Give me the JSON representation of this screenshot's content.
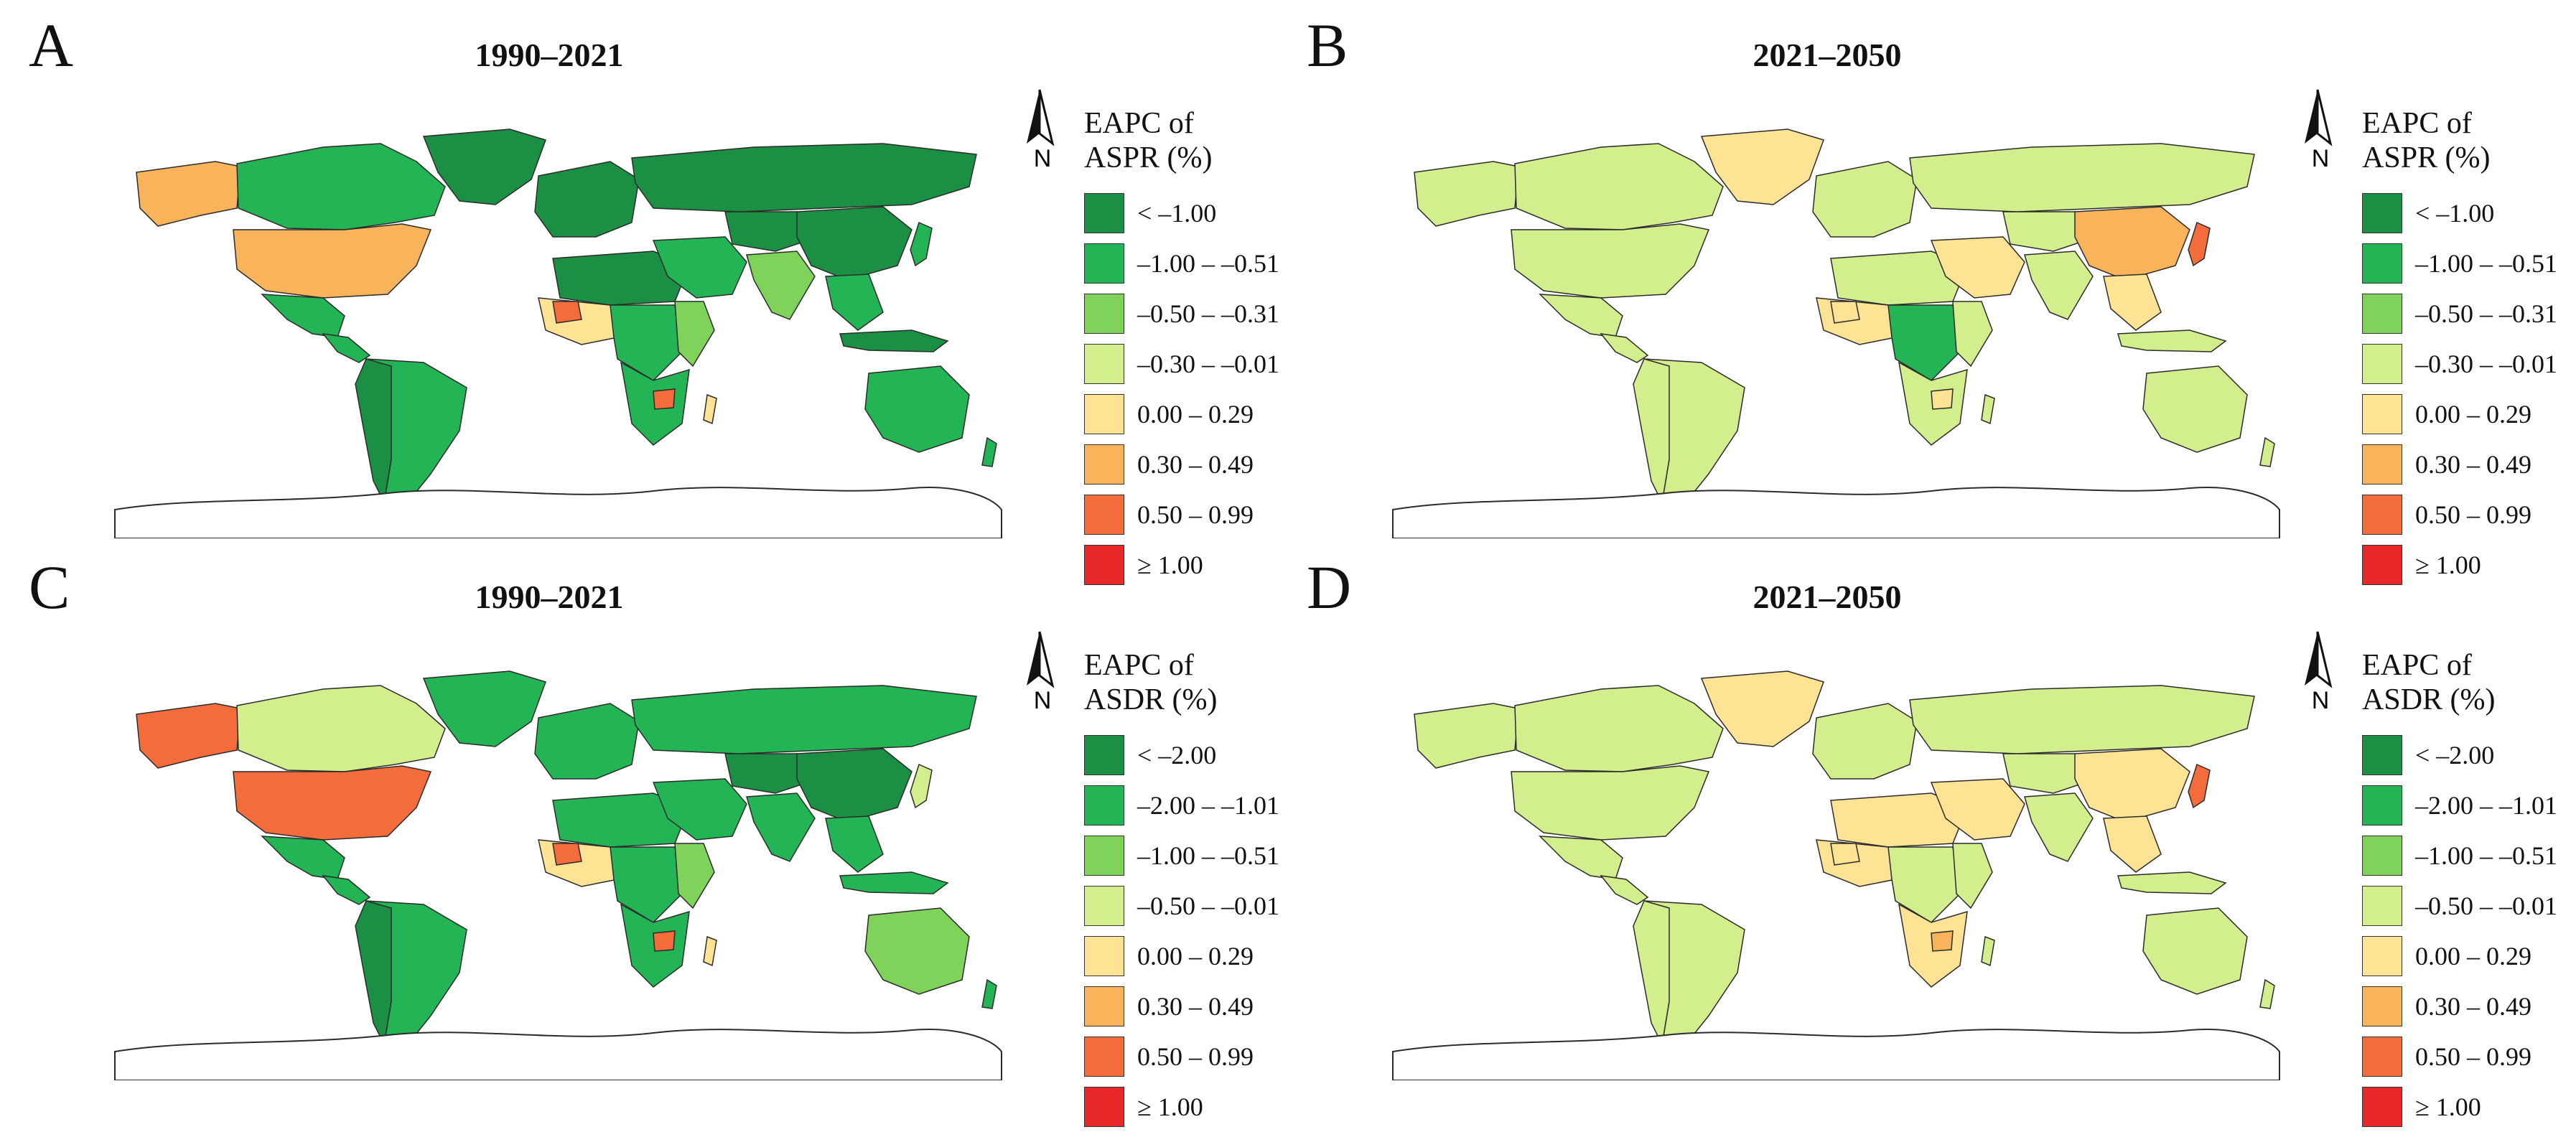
{
  "colors": {
    "dark_green": "#1b8f44",
    "green": "#22b455",
    "light_green": "#7fd35a",
    "pale_green": "#d3ee8c",
    "pale_yellow": "#ffe395",
    "orange_light": "#f9b35a",
    "orange": "#f46c3c",
    "red": "#e82828",
    "coast": "#2b2b2b",
    "antarctica": "#ffffff"
  },
  "panels": [
    {
      "letter": "A",
      "title": "1990–2021",
      "legend_title": "EAPC of",
      "legend_title2": "ASPR (%)",
      "legend": [
        "< –1.00",
        "–1.00 – –0.51",
        "–0.50 – –0.31",
        "–0.30 – –0.01",
        "0.00 – 0.29",
        "0.30 – 0.49",
        "0.50 – 0.99",
        "≥ 1.00"
      ],
      "north_label": "N",
      "fills": {
        "alaska": "orange_light",
        "canada": "green",
        "usa": "orange_light",
        "greenland": "dark_green",
        "mexico": "green",
        "central_america": "green",
        "south_america": "green",
        "south_america_west": "dark_green",
        "europe": "dark_green",
        "russia": "dark_green",
        "north_africa": "dark_green",
        "west_africa": "pale_yellow",
        "west_africa_spot": "orange",
        "central_africa": "green",
        "east_africa": "light_green",
        "southern_africa": "green",
        "southern_africa_spot": "orange",
        "middle_east": "green",
        "central_asia": "dark_green",
        "india": "light_green",
        "china": "dark_green",
        "southeast_asia": "green",
        "japan": "green",
        "indonesia": "dark_green",
        "australia": "green",
        "new_zealand": "green",
        "madagascar": "pale_yellow"
      }
    },
    {
      "letter": "B",
      "title": "2021–2050",
      "legend_title": "EAPC of",
      "legend_title2": "ASPR (%)",
      "legend": [
        "< –1.00",
        "–1.00 – –0.51",
        "–0.50 – –0.31",
        "–0.30 – –0.01",
        "0.00 – 0.29",
        "0.30 – 0.49",
        "0.50 – 0.99",
        "≥ 1.00"
      ],
      "north_label": "N",
      "fills": {
        "alaska": "pale_green",
        "canada": "pale_green",
        "usa": "pale_green",
        "greenland": "pale_yellow",
        "mexico": "pale_green",
        "central_america": "pale_green",
        "south_america": "pale_green",
        "south_america_west": "pale_green",
        "europe": "pale_green",
        "russia": "pale_green",
        "north_africa": "pale_green",
        "west_africa": "pale_yellow",
        "west_africa_spot": "pale_yellow",
        "central_africa": "green",
        "east_africa": "pale_green",
        "southern_africa": "pale_green",
        "southern_africa_spot": "pale_yellow",
        "middle_east": "pale_yellow",
        "central_asia": "pale_green",
        "india": "pale_green",
        "china": "orange_light",
        "southeast_asia": "pale_yellow",
        "japan": "orange",
        "indonesia": "pale_green",
        "australia": "pale_green",
        "new_zealand": "pale_green",
        "madagascar": "pale_green"
      }
    },
    {
      "letter": "C",
      "title": "1990–2021",
      "legend_title": "EAPC of",
      "legend_title2": "ASDR (%)",
      "legend": [
        "< –2.00",
        "–2.00 – –1.01",
        "–1.00 – –0.51",
        "–0.50 – –0.01",
        "0.00 – 0.29",
        "0.30 – 0.49",
        "0.50 – 0.99",
        "≥ 1.00"
      ],
      "north_label": "N",
      "fills": {
        "alaska": "orange",
        "canada": "pale_green",
        "usa": "orange",
        "greenland": "green",
        "mexico": "green",
        "central_america": "green",
        "south_america": "green",
        "south_america_west": "dark_green",
        "europe": "green",
        "russia": "green",
        "north_africa": "green",
        "west_africa": "pale_yellow",
        "west_africa_spot": "orange",
        "central_africa": "green",
        "east_africa": "light_green",
        "southern_africa": "green",
        "southern_africa_spot": "orange",
        "middle_east": "green",
        "central_asia": "dark_green",
        "india": "green",
        "china": "dark_green",
        "southeast_asia": "green",
        "japan": "pale_green",
        "indonesia": "green",
        "australia": "light_green",
        "new_zealand": "green",
        "madagascar": "pale_yellow"
      }
    },
    {
      "letter": "D",
      "title": "2021–2050",
      "legend_title": "EAPC of",
      "legend_title2": "ASDR (%)",
      "legend": [
        "< –2.00",
        "–2.00 – –1.01",
        "–1.00 – –0.51",
        "–0.50 – –0.01",
        "0.00 – 0.29",
        "0.30 – 0.49",
        "0.50 – 0.99",
        "≥ 1.00"
      ],
      "north_label": "N",
      "fills": {
        "alaska": "pale_green",
        "canada": "pale_green",
        "usa": "pale_green",
        "greenland": "pale_yellow",
        "mexico": "pale_green",
        "central_america": "pale_green",
        "south_america": "pale_green",
        "south_america_west": "pale_green",
        "europe": "pale_green",
        "russia": "pale_green",
        "north_africa": "pale_yellow",
        "west_africa": "pale_yellow",
        "west_africa_spot": "pale_yellow",
        "central_africa": "pale_green",
        "east_africa": "pale_green",
        "southern_africa": "pale_yellow",
        "southern_africa_spot": "orange_light",
        "middle_east": "pale_yellow",
        "central_asia": "pale_green",
        "india": "pale_green",
        "china": "pale_yellow",
        "southeast_asia": "pale_yellow",
        "japan": "orange",
        "indonesia": "pale_green",
        "australia": "pale_green",
        "new_zealand": "pale_green",
        "madagascar": "pale_green"
      }
    }
  ],
  "legend_color_keys": [
    "dark_green",
    "green",
    "light_green",
    "pale_green",
    "pale_yellow",
    "orange_light",
    "orange",
    "red"
  ]
}
